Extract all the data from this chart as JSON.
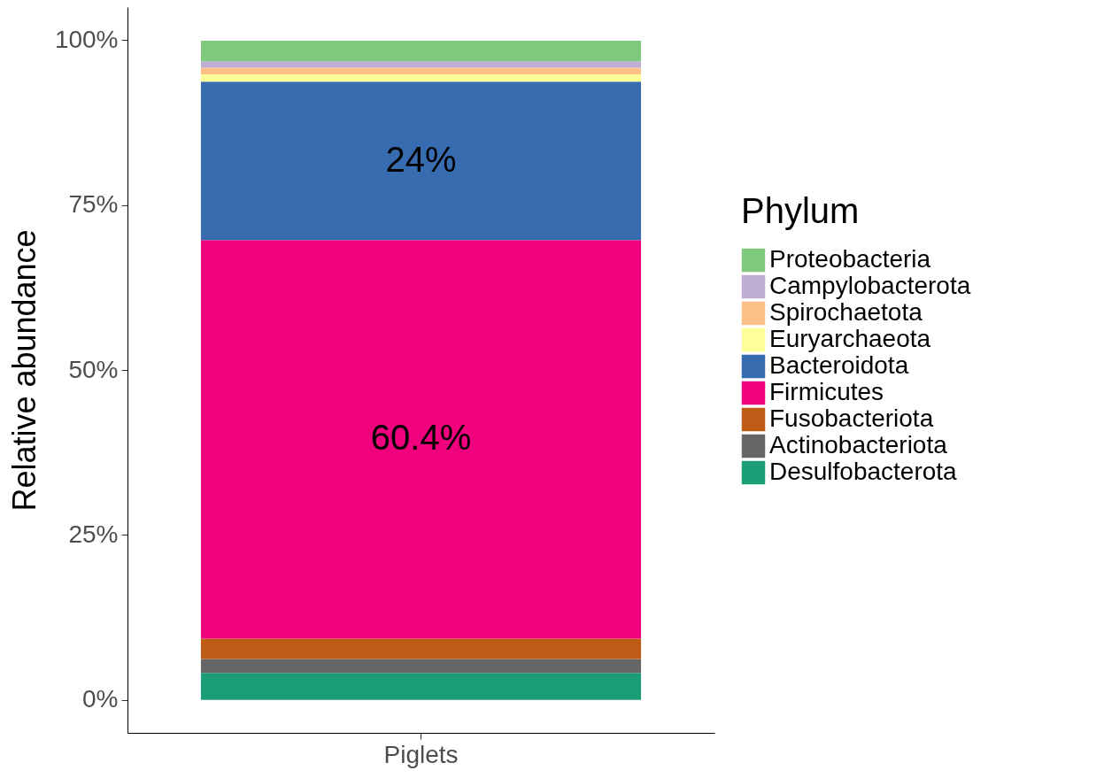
{
  "chart_data": {
    "type": "bar",
    "stacked": true,
    "ylabel": "Relative abundance",
    "legend_title": "Phylum",
    "legend": "right",
    "categories": [
      "Piglets"
    ],
    "ylim": [
      -5,
      105
    ],
    "yticks": [
      {
        "value": 0,
        "label": "0%"
      },
      {
        "value": 25,
        "label": "25%"
      },
      {
        "value": 50,
        "label": "50%"
      },
      {
        "value": 75,
        "label": "75%"
      },
      {
        "value": 100,
        "label": "100%"
      }
    ],
    "series": [
      {
        "name": "Desulfobacterota",
        "color": "#1b9e77",
        "values": [
          4.1
        ]
      },
      {
        "name": "Actinobacteriota",
        "color": "#666666",
        "values": [
          2.1
        ]
      },
      {
        "name": "Fusobacteriota",
        "color": "#bf5b17",
        "values": [
          3.1
        ]
      },
      {
        "name": "Firmicutes",
        "color": "#f0027f",
        "values": [
          60.4
        ],
        "value_labels": [
          "60.4%"
        ]
      },
      {
        "name": "Bacteroidota",
        "color": "#386cb0",
        "values": [
          24
        ],
        "value_labels": [
          "24%"
        ]
      },
      {
        "name": "Euryarchaeota",
        "color": "#ffff99",
        "values": [
          1.1
        ]
      },
      {
        "name": "Spirochaetota",
        "color": "#fdc086",
        "values": [
          1
        ]
      },
      {
        "name": "Campylobacterota",
        "color": "#beaed4",
        "values": [
          1
        ]
      },
      {
        "name": "Proteobacteria",
        "color": "#7fc97f",
        "values": [
          3.1
        ]
      }
    ]
  }
}
